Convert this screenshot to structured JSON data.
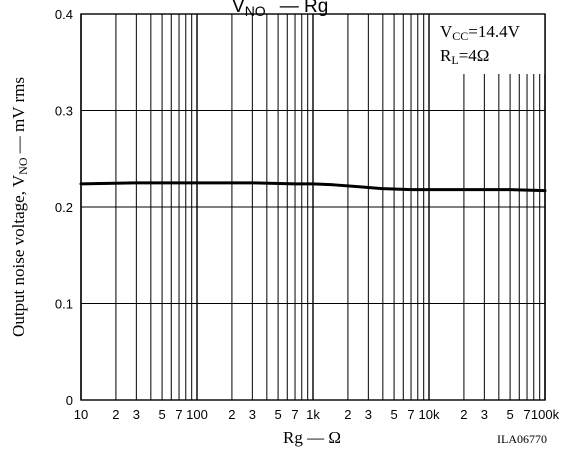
{
  "chart_data": {
    "type": "line",
    "title_fragment": "V",
    "title_fragment_sub": "NO",
    "title_fragment_tail": "— Rg",
    "xlabel": "Rg — Ω",
    "ylabel_pre": "Output noise voltage, V",
    "ylabel_sub": "NO",
    "ylabel_post": " — mV rms",
    "x_scale": "log",
    "xlim": [
      10,
      100000
    ],
    "ylim": [
      0,
      0.4
    ],
    "grid": true,
    "x_major_ticks": [
      {
        "value": 10,
        "label": "10"
      },
      {
        "value": 100,
        "label": "100"
      },
      {
        "value": 1000,
        "label": "1k"
      },
      {
        "value": 10000,
        "label": "10k"
      },
      {
        "value": 100000,
        "label": "100k"
      }
    ],
    "x_minor_ticks": [
      {
        "value": 20,
        "label": "2"
      },
      {
        "value": 30,
        "label": "3"
      },
      {
        "value": 40,
        "label": ""
      },
      {
        "value": 50,
        "label": "5"
      },
      {
        "value": 60,
        "label": ""
      },
      {
        "value": 70,
        "label": "7"
      },
      {
        "value": 80,
        "label": ""
      },
      {
        "value": 90,
        "label": ""
      },
      {
        "value": 200,
        "label": "2"
      },
      {
        "value": 300,
        "label": "3"
      },
      {
        "value": 400,
        "label": ""
      },
      {
        "value": 500,
        "label": "5"
      },
      {
        "value": 600,
        "label": ""
      },
      {
        "value": 700,
        "label": "7"
      },
      {
        "value": 800,
        "label": ""
      },
      {
        "value": 900,
        "label": ""
      },
      {
        "value": 2000,
        "label": "2"
      },
      {
        "value": 3000,
        "label": "3"
      },
      {
        "value": 4000,
        "label": ""
      },
      {
        "value": 5000,
        "label": "5"
      },
      {
        "value": 6000,
        "label": ""
      },
      {
        "value": 7000,
        "label": "7"
      },
      {
        "value": 8000,
        "label": ""
      },
      {
        "value": 9000,
        "label": ""
      },
      {
        "value": 20000,
        "label": "2"
      },
      {
        "value": 30000,
        "label": "3"
      },
      {
        "value": 40000,
        "label": ""
      },
      {
        "value": 50000,
        "label": "5"
      },
      {
        "value": 60000,
        "label": ""
      },
      {
        "value": 70000,
        "label": "7"
      },
      {
        "value": 80000,
        "label": ""
      },
      {
        "value": 90000,
        "label": ""
      }
    ],
    "y_ticks": [
      {
        "value": 0,
        "label": "0"
      },
      {
        "value": 0.1,
        "label": "0.1"
      },
      {
        "value": 0.2,
        "label": "0.2"
      },
      {
        "value": 0.3,
        "label": "0.3"
      },
      {
        "value": 0.4,
        "label": "0.4"
      }
    ],
    "series": [
      {
        "x": [
          10,
          30,
          100,
          300,
          700,
          1000,
          1500,
          2500,
          4000,
          7000,
          10000,
          20000,
          50000,
          100000
        ],
        "y": [
          0.224,
          0.225,
          0.225,
          0.225,
          0.224,
          0.224,
          0.223,
          0.221,
          0.219,
          0.218,
          0.218,
          0.218,
          0.218,
          0.217
        ]
      }
    ],
    "annotations": {
      "vcc_pre": "V",
      "vcc_sub": "CC",
      "vcc_post": "=14.4V",
      "rl_pre": "R",
      "rl_sub": "L",
      "rl_post": "=4Ω"
    },
    "figure_code": "ILA06770"
  }
}
